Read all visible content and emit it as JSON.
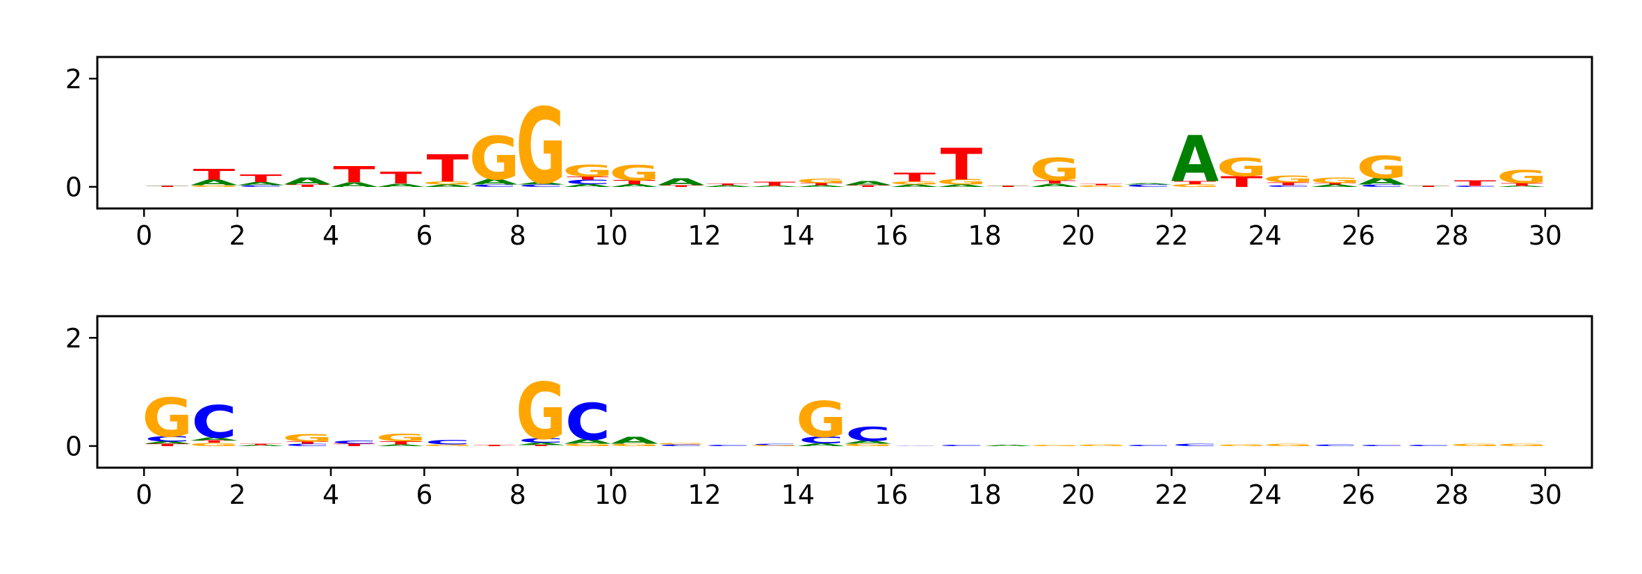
{
  "colors": {
    "A": "#008000",
    "C": "#0000ff",
    "G": "#ffa500",
    "T": "#ff0000",
    "axis": "#000000"
  },
  "chart_data": [
    {
      "type": "sequence-logo",
      "xlim": [
        -1,
        31
      ],
      "ylim": [
        -0.4,
        2.4
      ],
      "xticks": [
        "0",
        "2",
        "4",
        "6",
        "8",
        "10",
        "12",
        "14",
        "16",
        "18",
        "20",
        "22",
        "24",
        "26",
        "28",
        "30"
      ],
      "yticks": [
        "0",
        "2"
      ],
      "columns": [
        {
          "x": 0,
          "letters": [
            {
              "base": "T",
              "height": 0.02
            },
            {
              "base": "A",
              "height": 0.01
            }
          ]
        },
        {
          "x": 1,
          "letters": [
            {
              "base": "G",
              "height": 0.03
            },
            {
              "base": "A",
              "height": 0.1
            },
            {
              "base": "T",
              "height": 0.2
            }
          ]
        },
        {
          "x": 2,
          "letters": [
            {
              "base": "C",
              "height": 0.03
            },
            {
              "base": "A",
              "height": 0.06
            },
            {
              "base": "T",
              "height": 0.14
            }
          ]
        },
        {
          "x": 3,
          "letters": [
            {
              "base": "T",
              "height": 0.04
            },
            {
              "base": "A",
              "height": 0.12
            }
          ]
        },
        {
          "x": 4,
          "letters": [
            {
              "base": "A",
              "height": 0.08
            },
            {
              "base": "T",
              "height": 0.3
            }
          ]
        },
        {
          "x": 5,
          "letters": [
            {
              "base": "A",
              "height": 0.06
            },
            {
              "base": "T",
              "height": 0.22
            }
          ]
        },
        {
          "x": 6,
          "letters": [
            {
              "base": "A",
              "height": 0.04
            },
            {
              "base": "G",
              "height": 0.06
            },
            {
              "base": "T",
              "height": 0.5
            }
          ]
        },
        {
          "x": 7,
          "letters": [
            {
              "base": "C",
              "height": 0.04
            },
            {
              "base": "A",
              "height": 0.1
            },
            {
              "base": "G",
              "height": 0.8
            }
          ]
        },
        {
          "x": 8,
          "letters": [
            {
              "base": "C",
              "height": 0.04
            },
            {
              "base": "A",
              "height": 0.04
            },
            {
              "base": "G",
              "height": 1.4
            }
          ]
        },
        {
          "x": 9,
          "letters": [
            {
              "base": "A",
              "height": 0.05
            },
            {
              "base": "C",
              "height": 0.08
            },
            {
              "base": "T",
              "height": 0.06
            },
            {
              "base": "G",
              "height": 0.22
            }
          ]
        },
        {
          "x": 10,
          "letters": [
            {
              "base": "A",
              "height": 0.05
            },
            {
              "base": "T",
              "height": 0.07
            },
            {
              "base": "G",
              "height": 0.28
            }
          ]
        },
        {
          "x": 11,
          "letters": [
            {
              "base": "T",
              "height": 0.03
            },
            {
              "base": "A",
              "height": 0.12
            }
          ]
        },
        {
          "x": 12,
          "letters": [
            {
              "base": "A",
              "height": 0.03
            },
            {
              "base": "T",
              "height": 0.03
            }
          ]
        },
        {
          "x": 13,
          "letters": [
            {
              "base": "A",
              "height": 0.02
            },
            {
              "base": "T",
              "height": 0.07
            }
          ]
        },
        {
          "x": 14,
          "letters": [
            {
              "base": "A",
              "height": 0.03
            },
            {
              "base": "T",
              "height": 0.04
            },
            {
              "base": "G",
              "height": 0.08
            }
          ]
        },
        {
          "x": 15,
          "letters": [
            {
              "base": "T",
              "height": 0.03
            },
            {
              "base": "A",
              "height": 0.07
            }
          ]
        },
        {
          "x": 16,
          "letters": [
            {
              "base": "A",
              "height": 0.04
            },
            {
              "base": "G",
              "height": 0.06
            },
            {
              "base": "T",
              "height": 0.16
            }
          ]
        },
        {
          "x": 17,
          "letters": [
            {
              "base": "A",
              "height": 0.04
            },
            {
              "base": "G",
              "height": 0.1
            },
            {
              "base": "T",
              "height": 0.58
            }
          ]
        },
        {
          "x": 18,
          "letters": [
            {
              "base": "T",
              "height": 0.02
            },
            {
              "base": "A",
              "height": 0.01
            }
          ]
        },
        {
          "x": 19,
          "letters": [
            {
              "base": "A",
              "height": 0.06
            },
            {
              "base": "T",
              "height": 0.06
            },
            {
              "base": "G",
              "height": 0.42
            }
          ]
        },
        {
          "x": 20,
          "letters": [
            {
              "base": "G",
              "height": 0.03
            },
            {
              "base": "T",
              "height": 0.02
            }
          ]
        },
        {
          "x": 21,
          "letters": [
            {
              "base": "C",
              "height": 0.04
            },
            {
              "base": "A",
              "height": 0.02
            }
          ]
        },
        {
          "x": 22,
          "letters": [
            {
              "base": "G",
              "height": 0.05
            },
            {
              "base": "T",
              "height": 0.06
            },
            {
              "base": "A",
              "height": 0.85
            }
          ]
        },
        {
          "x": 23,
          "letters": [
            {
              "base": "T",
              "height": 0.2
            },
            {
              "base": "G",
              "height": 0.34
            }
          ]
        },
        {
          "x": 24,
          "letters": [
            {
              "base": "C",
              "height": 0.03
            },
            {
              "base": "T",
              "height": 0.05
            },
            {
              "base": "G",
              "height": 0.12
            }
          ]
        },
        {
          "x": 25,
          "letters": [
            {
              "base": "A",
              "height": 0.04
            },
            {
              "base": "T",
              "height": 0.03
            },
            {
              "base": "G",
              "height": 0.1
            }
          ]
        },
        {
          "x": 26,
          "letters": [
            {
              "base": "C",
              "height": 0.04
            },
            {
              "base": "A",
              "height": 0.12
            },
            {
              "base": "G",
              "height": 0.42
            }
          ]
        },
        {
          "x": 27,
          "letters": [
            {
              "base": "T",
              "height": 0.02
            },
            {
              "base": "A",
              "height": 0.01
            }
          ]
        },
        {
          "x": 28,
          "letters": [
            {
              "base": "C",
              "height": 0.02
            },
            {
              "base": "T",
              "height": 0.1
            }
          ]
        },
        {
          "x": 29,
          "letters": [
            {
              "base": "A",
              "height": 0.02
            },
            {
              "base": "T",
              "height": 0.05
            },
            {
              "base": "G",
              "height": 0.24
            }
          ]
        }
      ]
    },
    {
      "type": "sequence-logo",
      "xlim": [
        -1,
        31
      ],
      "ylim": [
        -0.4,
        2.4
      ],
      "xticks": [
        "0",
        "2",
        "4",
        "6",
        "8",
        "10",
        "12",
        "14",
        "16",
        "18",
        "20",
        "22",
        "24",
        "26",
        "28",
        "30"
      ],
      "yticks": [
        "0",
        "2"
      ],
      "columns": [
        {
          "x": 0,
          "letters": [
            {
              "base": "T",
              "height": 0.04
            },
            {
              "base": "A",
              "height": 0.04
            },
            {
              "base": "C",
              "height": 0.1
            },
            {
              "base": "G",
              "height": 0.72
            }
          ]
        },
        {
          "x": 1,
          "letters": [
            {
              "base": "G",
              "height": 0.06
            },
            {
              "base": "T",
              "height": 0.04
            },
            {
              "base": "A",
              "height": 0.06
            },
            {
              "base": "C",
              "height": 0.6
            }
          ]
        },
        {
          "x": 2,
          "letters": [
            {
              "base": "A",
              "height": 0.02
            },
            {
              "base": "T",
              "height": 0.02
            }
          ]
        },
        {
          "x": 3,
          "letters": [
            {
              "base": "C",
              "height": 0.04
            },
            {
              "base": "T",
              "height": 0.04
            },
            {
              "base": "G",
              "height": 0.14
            }
          ]
        },
        {
          "x": 4,
          "letters": [
            {
              "base": "T",
              "height": 0.04
            },
            {
              "base": "C",
              "height": 0.06
            }
          ]
        },
        {
          "x": 5,
          "letters": [
            {
              "base": "A",
              "height": 0.03
            },
            {
              "base": "T",
              "height": 0.06
            },
            {
              "base": "G",
              "height": 0.14
            }
          ]
        },
        {
          "x": 6,
          "letters": [
            {
              "base": "G",
              "height": 0.03
            },
            {
              "base": "C",
              "height": 0.08
            }
          ]
        },
        {
          "x": 7,
          "letters": [
            {
              "base": "T",
              "height": 0.02
            }
          ]
        },
        {
          "x": 8,
          "letters": [
            {
              "base": "T",
              "height": 0.02
            },
            {
              "base": "A",
              "height": 0.04
            },
            {
              "base": "C",
              "height": 0.08
            },
            {
              "base": "G",
              "height": 1.04
            }
          ]
        },
        {
          "x": 9,
          "letters": [
            {
              "base": "G",
              "height": 0.04
            },
            {
              "base": "A",
              "height": 0.08
            },
            {
              "base": "C",
              "height": 0.68
            }
          ]
        },
        {
          "x": 10,
          "letters": [
            {
              "base": "G",
              "height": 0.04
            },
            {
              "base": "A",
              "height": 0.12
            }
          ]
        },
        {
          "x": 11,
          "letters": [
            {
              "base": "C",
              "height": 0.03
            },
            {
              "base": "G",
              "height": 0.02
            }
          ]
        },
        {
          "x": 12,
          "letters": [
            {
              "base": "C",
              "height": 0.02
            }
          ]
        },
        {
          "x": 13,
          "letters": [
            {
              "base": "G",
              "height": 0.02
            },
            {
              "base": "C",
              "height": 0.02
            }
          ]
        },
        {
          "x": 14,
          "letters": [
            {
              "base": "A",
              "height": 0.05
            },
            {
              "base": "C",
              "height": 0.12
            },
            {
              "base": "G",
              "height": 0.66
            }
          ]
        },
        {
          "x": 15,
          "letters": [
            {
              "base": "G",
              "height": 0.04
            },
            {
              "base": "A",
              "height": 0.06
            },
            {
              "base": "C",
              "height": 0.26
            }
          ]
        },
        {
          "x": 16,
          "letters": [
            {
              "base": "C",
              "height": 0.01
            }
          ]
        },
        {
          "x": 17,
          "letters": [
            {
              "base": "C",
              "height": 0.02
            }
          ]
        },
        {
          "x": 18,
          "letters": [
            {
              "base": "A",
              "height": 0.02
            }
          ]
        },
        {
          "x": 19,
          "letters": [
            {
              "base": "G",
              "height": 0.02
            }
          ]
        },
        {
          "x": 20,
          "letters": [
            {
              "base": "G",
              "height": 0.03
            }
          ]
        },
        {
          "x": 21,
          "letters": [
            {
              "base": "C",
              "height": 0.02
            }
          ]
        },
        {
          "x": 22,
          "letters": [
            {
              "base": "C",
              "height": 0.04
            }
          ]
        },
        {
          "x": 23,
          "letters": [
            {
              "base": "G",
              "height": 0.03
            }
          ]
        },
        {
          "x": 24,
          "letters": [
            {
              "base": "G",
              "height": 0.04
            }
          ]
        },
        {
          "x": 25,
          "letters": [
            {
              "base": "C",
              "height": 0.03
            }
          ]
        },
        {
          "x": 26,
          "letters": [
            {
              "base": "C",
              "height": 0.02
            }
          ]
        },
        {
          "x": 27,
          "letters": [
            {
              "base": "C",
              "height": 0.02
            }
          ]
        },
        {
          "x": 28,
          "letters": [
            {
              "base": "G",
              "height": 0.04
            }
          ]
        },
        {
          "x": 29,
          "letters": [
            {
              "base": "G",
              "height": 0.04
            }
          ]
        }
      ]
    }
  ]
}
